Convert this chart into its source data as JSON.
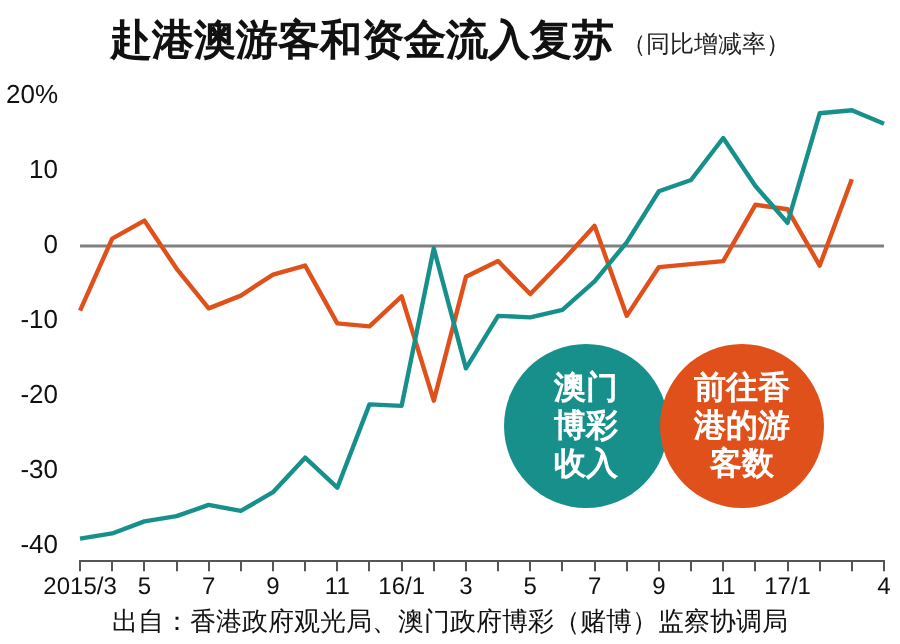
{
  "chart_data": {
    "type": "line",
    "title": "赴港澳游客和资金流入复苏",
    "subtitle": "（同比增减率）",
    "categories": [
      "2015/3",
      null,
      "5",
      null,
      "7",
      null,
      "9",
      null,
      "11",
      null,
      "16/1",
      null,
      "3",
      null,
      "5",
      null,
      "7",
      null,
      "9",
      null,
      "11",
      null,
      "17/1",
      null,
      null,
      "4"
    ],
    "series": [
      {
        "name": "澳门博彩收入",
        "color": "#17908c",
        "values": [
          -39,
          -38.3,
          -36.7,
          -36,
          -34.5,
          -35.3,
          -32.8,
          -28.2,
          -32.2,
          -21.1,
          -21.3,
          -0.3,
          -16.3,
          -9.3,
          -9.5,
          -8.5,
          -4.7,
          0.5,
          7.3,
          8.8,
          14.4,
          8,
          3.1,
          17.7,
          18.1,
          16.3
        ]
      },
      {
        "name": "前往香港的游客数",
        "color": "#e0501b",
        "values": [
          -8.6,
          1,
          3.4,
          -3,
          -8.3,
          -6.6,
          -3.8,
          -2.6,
          -10.3,
          -10.7,
          -6.7,
          -20.6,
          -4.1,
          -2,
          -6.4,
          -2,
          2.7,
          -9.3,
          -2.8,
          -2.4,
          -2,
          5.5,
          4.9,
          -2.6,
          8.9,
          null
        ]
      }
    ],
    "ylim": [
      -42,
      20
    ],
    "yticks": [
      {
        "value": 20,
        "label": "20%"
      },
      10,
      0,
      -10,
      -20,
      -30,
      -40
    ],
    "ref_lines": [
      {
        "axis": "y",
        "value": 0,
        "color": "#808080"
      }
    ],
    "marker": "none",
    "legend": "bottom right",
    "annotations": [
      "出自：香港政府观光局、澳门政府博彩（赌博）监察协调局"
    ]
  }
}
